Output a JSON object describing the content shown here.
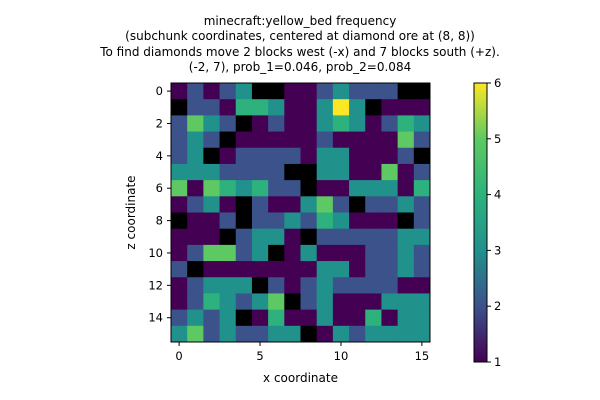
{
  "chart_data": {
    "type": "heatmap",
    "title": [
      "minecraft:yellow_bed frequency",
      "(subchunk coordinates, centered at diamond ore at (8, 8))",
      "To find diamonds move 2 blocks west (-x) and 7 blocks south (+z).",
      "(-2, 7), prob_1=0.046, prob_2=0.084"
    ],
    "xlabel": "x coordinate",
    "ylabel": "z coordinate",
    "x_ticks": [
      0,
      5,
      10,
      15
    ],
    "y_ticks": [
      0,
      2,
      4,
      6,
      8,
      10,
      12,
      14
    ],
    "colorbar": {
      "min": 1,
      "max": 6,
      "ticks": [
        1,
        2,
        3,
        4,
        5,
        6
      ],
      "colormap": "viridis"
    },
    "grid_size": [
      16,
      16
    ],
    "values": [
      [
        1,
        2,
        1,
        2,
        3,
        0,
        0,
        1,
        1,
        2,
        3,
        2,
        2,
        2,
        0,
        0
      ],
      [
        0,
        2,
        2,
        1,
        4,
        4,
        3,
        1,
        1,
        3,
        6,
        3,
        0,
        1,
        1,
        1
      ],
      [
        2,
        5,
        3,
        2,
        0,
        1,
        2,
        1,
        1,
        3,
        4,
        3,
        1,
        2,
        4,
        3
      ],
      [
        2,
        3,
        2,
        0,
        1,
        1,
        1,
        1,
        1,
        2,
        1,
        1,
        1,
        1,
        5,
        2
      ],
      [
        2,
        3,
        0,
        1,
        2,
        2,
        2,
        2,
        1,
        3,
        3,
        1,
        1,
        1,
        2,
        0
      ],
      [
        3,
        3,
        3,
        2,
        2,
        2,
        2,
        0,
        0,
        3,
        3,
        1,
        1,
        5,
        1,
        2
      ],
      [
        5,
        1,
        5,
        4,
        3,
        4,
        2,
        2,
        0,
        1,
        1,
        3,
        3,
        3,
        1,
        4
      ],
      [
        1,
        2,
        3,
        1,
        0,
        2,
        1,
        1,
        3,
        5,
        2,
        0,
        2,
        2,
        3,
        2
      ],
      [
        0,
        1,
        1,
        2,
        0,
        2,
        2,
        3,
        2,
        4,
        3,
        1,
        1,
        1,
        0,
        2
      ],
      [
        1,
        1,
        1,
        0,
        2,
        3,
        3,
        1,
        0,
        2,
        2,
        2,
        2,
        2,
        3,
        3
      ],
      [
        1,
        2,
        5,
        5,
        2,
        3,
        0,
        1,
        3,
        1,
        1,
        1,
        2,
        2,
        3,
        2
      ],
      [
        2,
        0,
        1,
        1,
        1,
        1,
        1,
        1,
        1,
        3,
        3,
        1,
        2,
        2,
        3,
        2
      ],
      [
        1,
        2,
        3,
        3,
        3,
        0,
        2,
        1,
        2,
        3,
        2,
        2,
        2,
        2,
        1,
        1
      ],
      [
        1,
        2,
        4,
        3,
        2,
        3,
        5,
        0,
        2,
        3,
        1,
        1,
        1,
        3,
        3,
        3
      ],
      [
        2,
        3,
        2,
        3,
        0,
        1,
        4,
        1,
        1,
        3,
        1,
        1,
        4,
        1,
        3,
        3
      ],
      [
        3,
        5,
        2,
        3,
        2,
        2,
        3,
        3,
        0,
        1,
        3,
        2,
        3,
        3,
        3,
        3
      ]
    ]
  }
}
